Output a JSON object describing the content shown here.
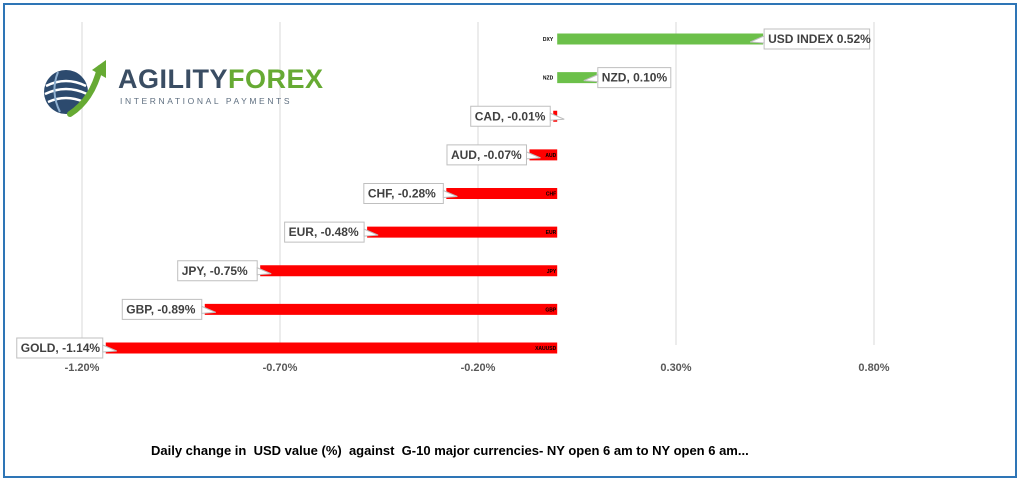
{
  "logo": {
    "name_part1": "AGILITY",
    "name_part2": "FOREX",
    "tagline": "INTERNATIONAL PAYMENTS"
  },
  "caption": "Daily change in  USD value (%)  against  G-10 major currencies- NY open 6 am to NY open 6 am...",
  "colors": {
    "positive": "#6cc04a",
    "negative": "#ff0000",
    "grid": "#d9d9d9",
    "frame": "#2e75b6"
  },
  "chart_data": {
    "type": "bar",
    "orientation": "horizontal",
    "xlim": [
      -1.2,
      0.8
    ],
    "xticks": [
      "-1.20%",
      "-0.70%",
      "-0.20%",
      "0.30%",
      "0.80%"
    ],
    "xtick_values": [
      -1.2,
      -0.7,
      -0.2,
      0.3,
      0.8
    ],
    "grid": true,
    "categories": [
      "DXY",
      "NZD",
      "CAD",
      "AUD",
      "CHF",
      "EUR",
      "JPY",
      "GBP",
      "XAUUSD"
    ],
    "values": [
      0.52,
      0.1,
      -0.01,
      -0.07,
      -0.28,
      -0.48,
      -0.75,
      -0.89,
      -1.14
    ],
    "data_labels": [
      "USD INDEX 0.52%",
      "NZD, 0.10%",
      "CAD, -0.01%",
      "AUD, -0.07%",
      "CHF, -0.28%",
      "EUR, -0.48%",
      "JPY, -0.75%",
      "GBP, -0.89%",
      "GOLD, -1.14%"
    ]
  }
}
